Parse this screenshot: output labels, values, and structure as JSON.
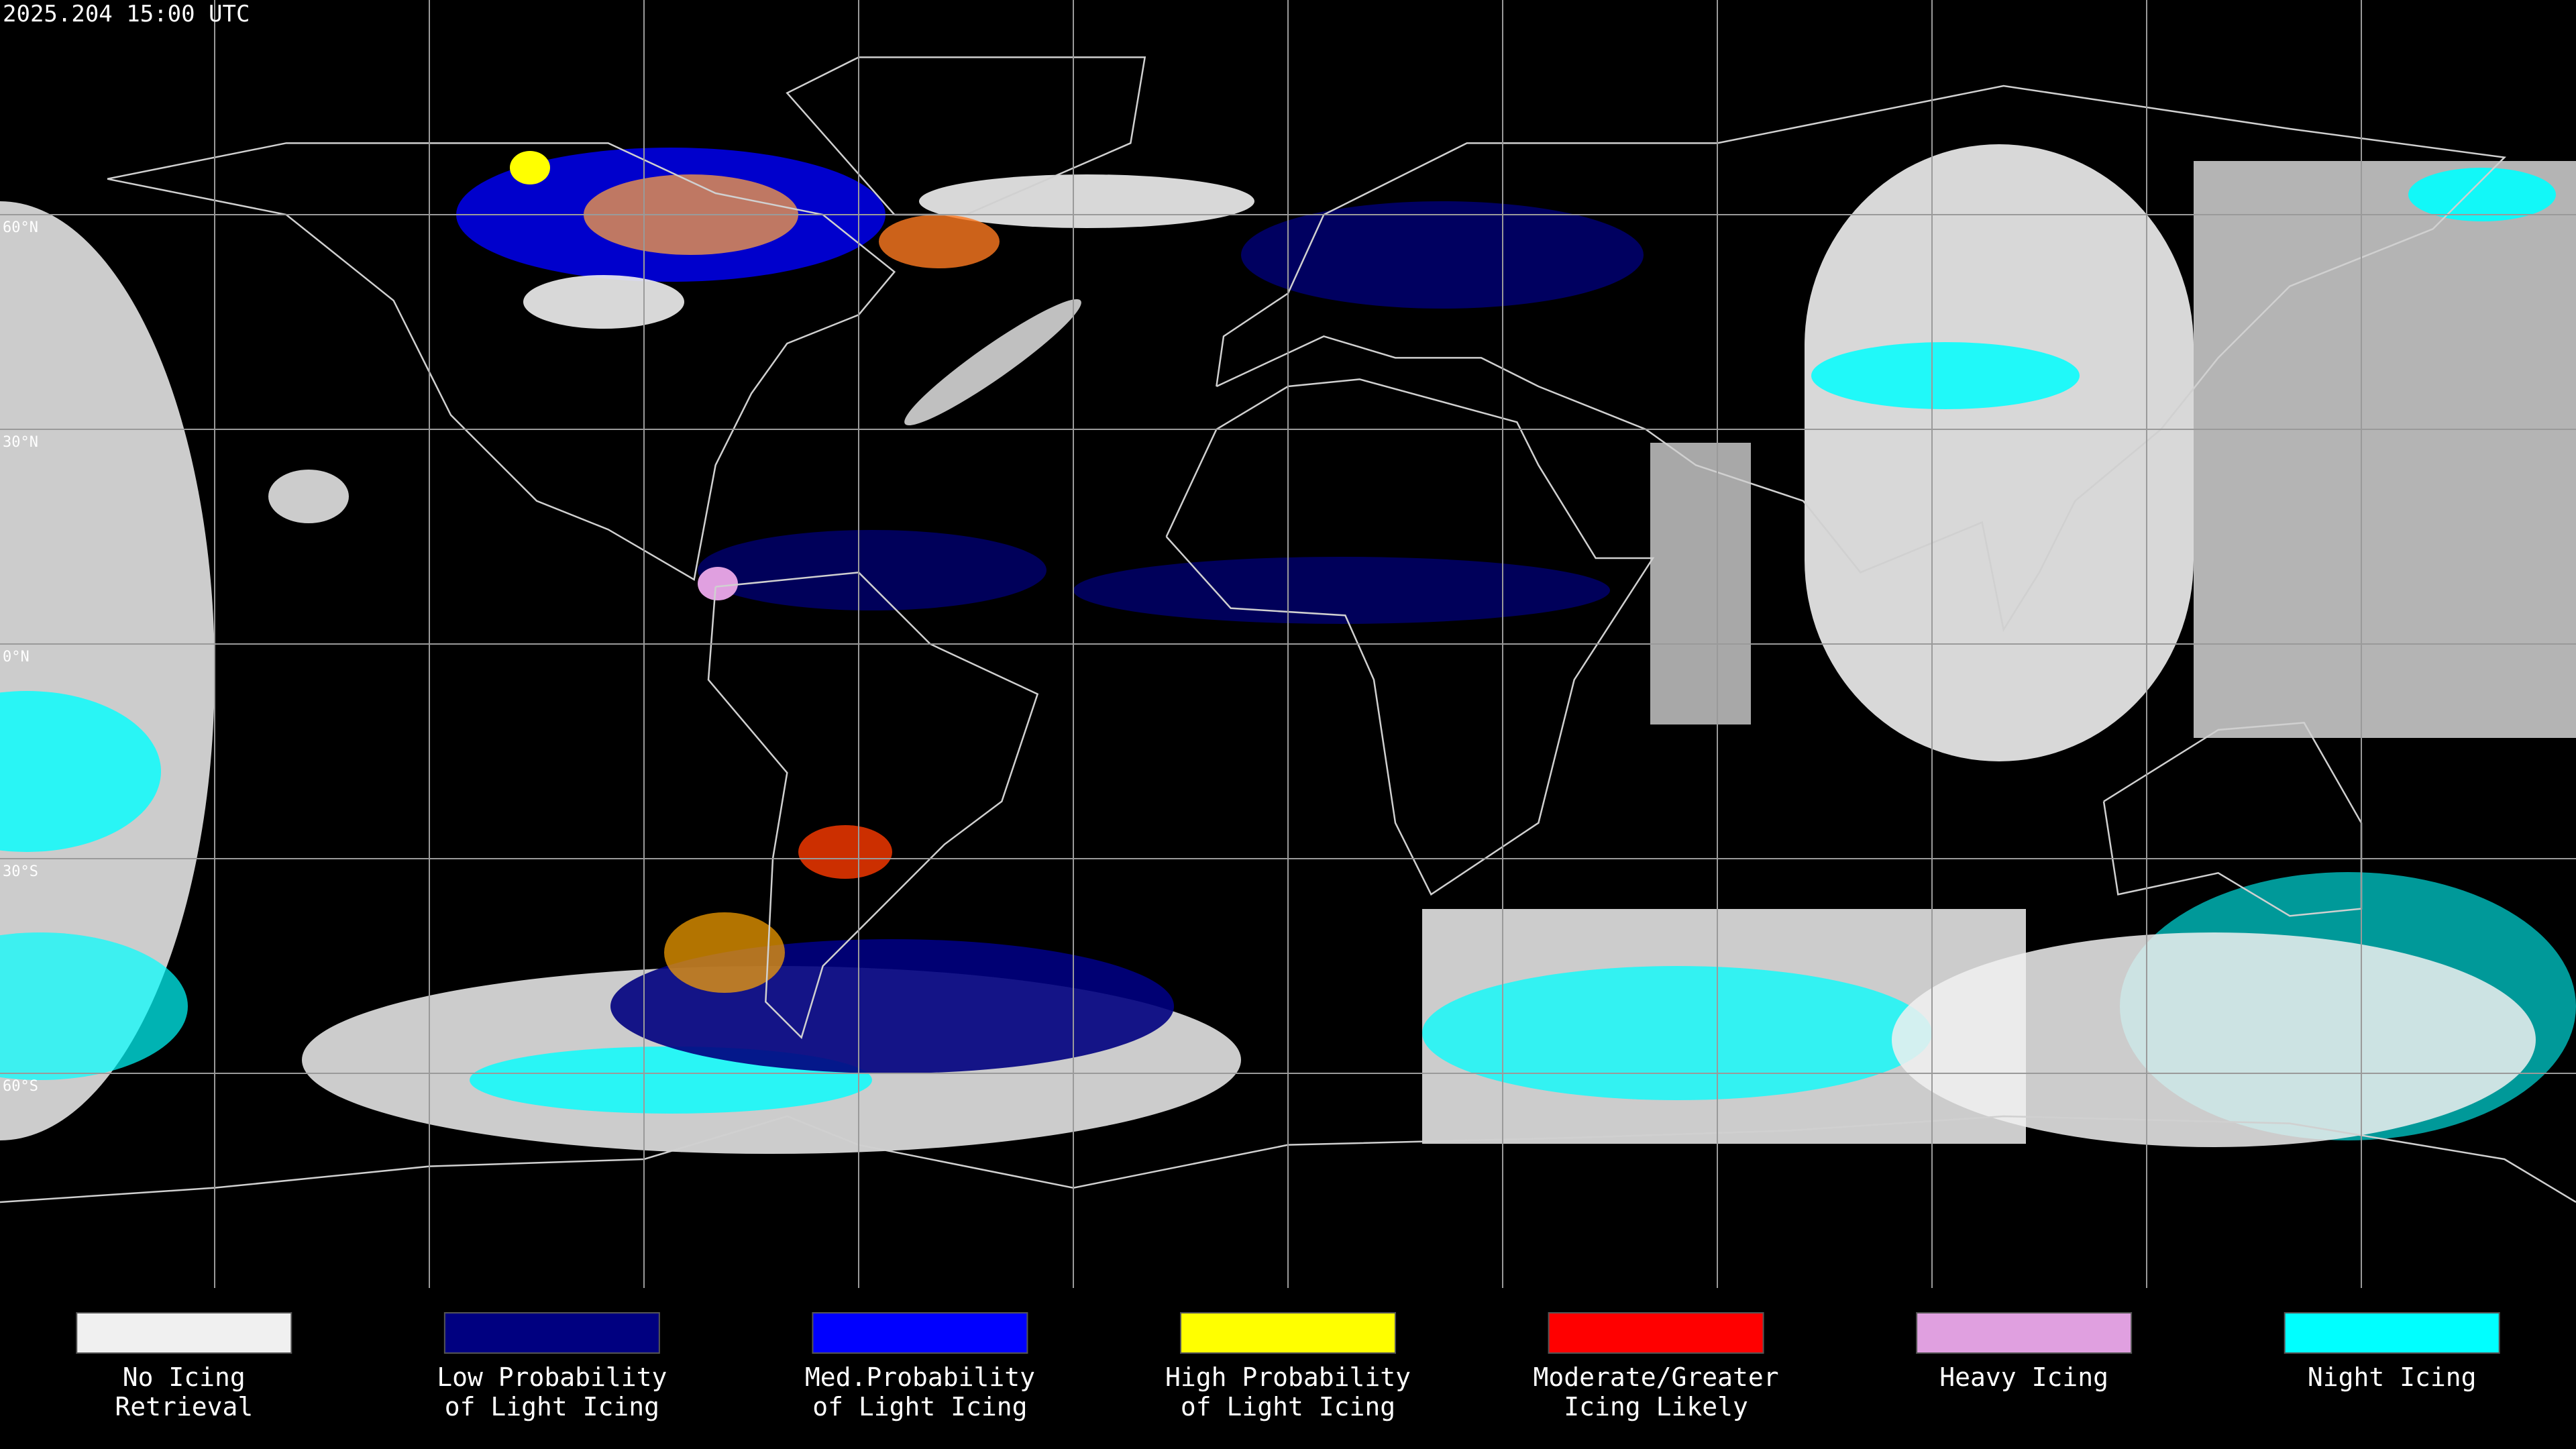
{
  "header": {
    "title": "2025.204 15:00 UTC"
  },
  "map": {
    "latitude_labels": [
      "60°N",
      "30°N",
      "0°N",
      "30°S",
      "60°S"
    ]
  },
  "legend": {
    "items": [
      {
        "label_lines": [
          "No Icing",
          "Retrieval"
        ],
        "color": "#f0f0f0"
      },
      {
        "label_lines": [
          "Low Probability",
          "of Light Icing"
        ],
        "color": "#000080"
      },
      {
        "label_lines": [
          "Med.Probability",
          "of Light Icing"
        ],
        "color": "#0000ff"
      },
      {
        "label_lines": [
          "High Probability",
          "of Light Icing"
        ],
        "color": "#ffff00"
      },
      {
        "label_lines": [
          "Moderate/Greater",
          "Icing Likely"
        ],
        "color": "#ff0000"
      },
      {
        "label_lines": [
          "Heavy Icing"
        ],
        "color": "#e0a0e0"
      },
      {
        "label_lines": [
          "Night Icing"
        ],
        "color": "#00ffff"
      }
    ]
  }
}
